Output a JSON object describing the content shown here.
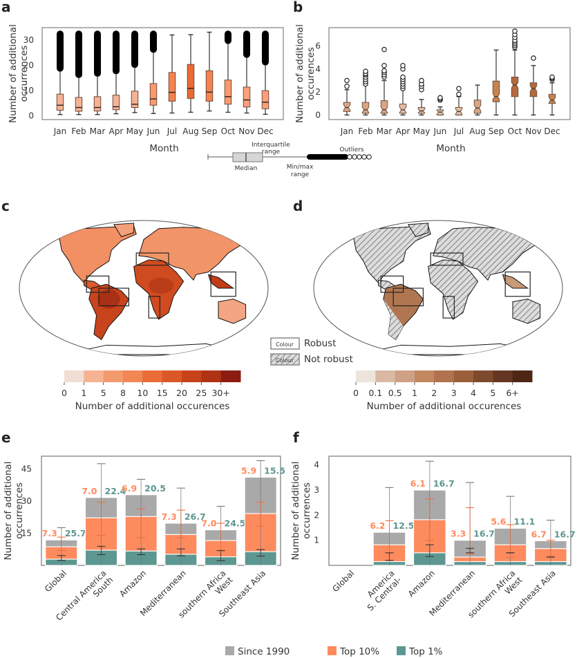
{
  "panels": {
    "a": "a",
    "b": "b",
    "c": "c",
    "d": "d",
    "e": "e",
    "f": "f"
  },
  "colors": {
    "since1990": "#a9a9a9",
    "top10": "#fe8b5e",
    "top1": "#5d9791",
    "outline": "#6b6b6b"
  },
  "chart_data": [
    {
      "id": "a",
      "type": "box",
      "title": "",
      "xlabel": "Month",
      "ylabel": "Number of additional occurrences",
      "ylim": [
        -1.5,
        35
      ],
      "yticks": [
        0,
        10,
        20,
        30
      ],
      "categories": [
        "Jan",
        "Feb",
        "Mar",
        "Apr",
        "May",
        "Jun",
        "Jul",
        "Aug",
        "Sep",
        "Oct",
        "Nov",
        "Dec"
      ],
      "boxes": [
        {
          "min": 0.5,
          "q1": 2.2,
          "median": 4.2,
          "q3": 8.6,
          "whisker_high": 17.5,
          "outliers_to": 33,
          "color": "#f6b294"
        },
        {
          "min": 0.5,
          "q1": 1.8,
          "median": 3.3,
          "q3": 7.3,
          "whisker_high": 15,
          "outliers_to": 33,
          "color": "#f6b294"
        },
        {
          "min": 0.5,
          "q1": 1.9,
          "median": 3.3,
          "q3": 7.6,
          "whisker_high": 15.5,
          "outliers_to": 33,
          "color": "#f6b294"
        },
        {
          "min": 0.8,
          "q1": 2.4,
          "median": 3.6,
          "q3": 8.2,
          "whisker_high": 16.5,
          "outliers_to": 33,
          "color": "#f6b294"
        },
        {
          "min": 1.3,
          "q1": 3.3,
          "median": 4.6,
          "q3": 9.8,
          "whisker_high": 19,
          "outliers_to": 33,
          "color": "#f6b294"
        },
        {
          "min": 0.9,
          "q1": 4.2,
          "median": 6.7,
          "q3": 12.8,
          "whisker_high": 25,
          "outliers_to": 33,
          "color": "#f99a6d"
        },
        {
          "min": 1.1,
          "q1": 5.8,
          "median": 9.3,
          "q3": 17.2,
          "whisker_high": 32.1,
          "outliers_to": null,
          "color": "#f6824e"
        },
        {
          "min": 1.4,
          "q1": 6.9,
          "median": 10.9,
          "q3": 20.4,
          "whisker_high": 32.2,
          "outliers_to": null,
          "color": "#ea6a33"
        },
        {
          "min": 1.9,
          "q1": 5.8,
          "median": 9.4,
          "q3": 17.9,
          "whisker_high": 33.2,
          "outliers_to": null,
          "color": "#f6824e"
        },
        {
          "min": 1.4,
          "q1": 4.6,
          "median": 7.6,
          "q3": 14.2,
          "whisker_high": 28.5,
          "outliers_to": 33,
          "color": "#f99a6d"
        },
        {
          "min": 1.1,
          "q1": 3.5,
          "median": 6.3,
          "q3": 11.4,
          "whisker_high": 23,
          "outliers_to": 33,
          "color": "#fba07a"
        },
        {
          "min": 0.6,
          "q1": 2.8,
          "median": 5.4,
          "q3": 10.0,
          "whisker_high": 20,
          "outliers_to": 33,
          "color": "#fba07a"
        }
      ]
    },
    {
      "id": "b",
      "type": "box",
      "notched": true,
      "title": "",
      "xlabel": "Month",
      "ylabel": "Number of additional occurences",
      "ylim": [
        -0.4,
        7.6
      ],
      "yticks": [
        0,
        2,
        4,
        6
      ],
      "categories": [
        "Jan",
        "Feb",
        "Mar",
        "Apr",
        "May",
        "Jun",
        "Jul",
        "Aug",
        "Sep",
        "Oct",
        "Nov",
        "Dec"
      ],
      "boxes": [
        {
          "min": 0,
          "q1": 0.3,
          "median": 0.65,
          "q3": 1.1,
          "whisker_high": 2.2,
          "outliers": [
            2.5,
            3.0
          ],
          "color": "#d9a583"
        },
        {
          "min": 0,
          "q1": 0.15,
          "median": 0.45,
          "q3": 1.1,
          "whisker_high": 2.6,
          "outliers": [
            2.7,
            2.9,
            3.1,
            3.3,
            3.5,
            3.6,
            3.8
          ],
          "color": "#d9a583"
        },
        {
          "min": 0,
          "q1": 0.15,
          "median": 0.45,
          "q3": 1.25,
          "whisker_high": 3.0,
          "outliers": [
            3.3,
            3.5,
            3.7,
            3.85,
            4.3,
            5.7
          ],
          "color": "#d9a583"
        },
        {
          "min": 0,
          "q1": 0.15,
          "median": 0.45,
          "q3": 0.95,
          "whisker_high": 2.2,
          "outliers": [
            2.3,
            2.5,
            2.7,
            2.9,
            3.1,
            3.3,
            4.0,
            4.3
          ],
          "color": "#e3bda0"
        },
        {
          "min": 0,
          "q1": 0.15,
          "median": 0.35,
          "q3": 0.65,
          "whisker_high": 1.35,
          "outliers": [
            2.2,
            2.5,
            2.7,
            3.0
          ],
          "color": "#e3bda0"
        },
        {
          "min": 0,
          "q1": 0.0,
          "median": 0.25,
          "q3": 0.45,
          "whisker_high": 0.7,
          "outliers": [
            1.3,
            1.4,
            1.5
          ],
          "color": "#e3bda0"
        },
        {
          "min": 0,
          "q1": 0.0,
          "median": 0.3,
          "q3": 0.65,
          "whisker_high": 1.6,
          "outliers": [
            1.8,
            2.3
          ],
          "color": "#e3bda0"
        },
        {
          "min": 0,
          "q1": 0.15,
          "median": 0.6,
          "q3": 1.3,
          "whisker_high": 2.6,
          "outliers": [],
          "color": "#d9a583"
        },
        {
          "min": 0,
          "q1": 1.15,
          "median": 1.6,
          "q3": 2.95,
          "whisker_high": 5.65,
          "outliers": [],
          "color": "#c7834e"
        },
        {
          "min": 0,
          "q1": 1.6,
          "median": 2.6,
          "q3": 3.3,
          "whisker_high": 5.65,
          "outliers": [
            5.9,
            6.05,
            6.2,
            6.35,
            6.5,
            6.75,
            7.0,
            7.3
          ],
          "color": "#b36a3c"
        },
        {
          "min": 0,
          "q1": 1.6,
          "median": 2.3,
          "q3": 2.8,
          "whisker_high": 4.3,
          "outliers": [
            4.95
          ],
          "color": "#b36a3c"
        },
        {
          "min": 0,
          "q1": 1.0,
          "median": 1.3,
          "q3": 1.8,
          "whisker_high": 2.8,
          "outliers": [
            3.1,
            3.2,
            3.3
          ],
          "color": "#c7834e"
        }
      ]
    },
    {
      "id": "e",
      "type": "bar",
      "stacked": true,
      "xlabel": "Region",
      "ylabel": "Number of additional occurrences",
      "ylim": [
        0,
        51
      ],
      "yticks": [
        15,
        30,
        45
      ],
      "categories": [
        "Global",
        "South\nCentral America",
        "Amazon",
        "Mediterranean",
        "West\nsouthern Africa",
        "Southeast Asia"
      ],
      "series": [
        {
          "name": "Since 1990",
          "values": [
            11.9,
            31.7,
            33.0,
            19.7,
            16.6,
            41.2
          ],
          "err": [
            [
              null,
              17.6
            ],
            [
              null,
              47.5
            ],
            [
              null,
              40.2
            ],
            [
              null,
              36.1
            ],
            [
              null,
              27.6
            ],
            [
              null,
              48.9
            ]
          ]
        },
        {
          "name": "Top 10%",
          "values": [
            8.7,
            22.2,
            22.8,
            14.4,
            11.6,
            24.2
          ],
          "err": [
            [
              7.0,
              13.2
            ],
            [
              14.0,
              29.5
            ],
            [
              13.0,
              26.4
            ],
            [
              13.0,
              25.8
            ],
            [
              7.0,
              19.7
            ],
            [
              18.3,
              29.5
            ]
          ]
        },
        {
          "name": "Top 1%",
          "values": [
            2.9,
            7.1,
            6.7,
            5.2,
            4.0,
            6.4
          ],
          "err": [
            [
              2.3,
              4.6
            ],
            [
              5.0,
              8.9
            ],
            [
              5.0,
              7.7
            ],
            [
              4.5,
              7.7
            ],
            [
              2.2,
              6.9
            ],
            [
              4.3,
              7.4
            ]
          ]
        }
      ],
      "annotations": {
        "top10_pct": [
          "7.3",
          "7.0",
          "6.9",
          "7.3",
          "7.0",
          "5.9"
        ],
        "top1_pct": [
          "25.7",
          "22.4",
          "20.5",
          "26.7",
          "24.5",
          "15.5"
        ]
      }
    },
    {
      "id": "f",
      "type": "bar",
      "stacked": true,
      "xlabel": "Region",
      "ylabel": "Number of additional occurrences",
      "ylim": [
        0,
        4.35
      ],
      "yticks": [
        1,
        2,
        3,
        4
      ],
      "categories": [
        "Global",
        "S. Central-\nAmerica",
        "Amazon",
        "Mediterranean",
        "West\nsouthern Africa",
        "Southeast Asia"
      ],
      "series": [
        {
          "name": "Since 1990",
          "values": [
            0,
            1.32,
            3.0,
            1.0,
            1.48,
            0.98
          ],
          "err": [
            [
              null,
              null
            ],
            [
              null,
              3.1
            ],
            [
              null,
              4.15
            ],
            [
              null,
              3.3
            ],
            [
              null,
              2.75
            ],
            [
              null,
              1.8
            ]
          ]
        },
        {
          "name": "Top 10%",
          "values": [
            0,
            0.82,
            1.82,
            0.33,
            0.82,
            0.67
          ],
          "err": [
            [
              null,
              null
            ],
            [
              0.5,
              1.78
            ],
            [
              1.0,
              2.65
            ],
            [
              0.45,
              2.3
            ],
            [
              0.32,
              1.62
            ],
            [
              0.35,
              1.0
            ]
          ]
        },
        {
          "name": "Top 1%",
          "values": [
            0,
            0.15,
            0.5,
            0.15,
            0.15,
            0.15
          ],
          "err": [
            [
              null,
              null
            ],
            [
              0.2,
              0.5
            ],
            [
              0.35,
              0.82
            ],
            [
              0.5,
              0.68
            ],
            [
              0.5,
              0.5
            ],
            [
              0.33,
              0.33
            ]
          ]
        }
      ],
      "annotations": {
        "top10_pct": [
          "",
          "6.2",
          "6.1",
          "3.3",
          "5.6",
          "6.7"
        ],
        "top1_pct": [
          "",
          "12.5",
          "16.7",
          "16.7",
          "11.1",
          "16.7"
        ]
      }
    },
    {
      "id": "c",
      "type": "heatmap",
      "subtype": "world-map",
      "colorbar_label": "Number of additional occurences",
      "colorbar_ticks": [
        "0",
        "1",
        "5",
        "8",
        "10",
        "15",
        "20",
        "25",
        "30+"
      ],
      "colorbar_colors": [
        "#f1ddd3",
        "#f6b393",
        "#f39a6d",
        "#f28654",
        "#ea6c36",
        "#dc5727",
        "#c8421a",
        "#b03215",
        "#8c1c11"
      ],
      "highlight_regions": [
        "South Central America",
        "Amazon",
        "Mediterranean",
        "West southern Africa",
        "Southeast Asia"
      ]
    },
    {
      "id": "d",
      "type": "heatmap",
      "subtype": "world-map",
      "colorbar_label": "Number of additional occurences",
      "colorbar_ticks": [
        "0",
        "0.1",
        "0.5",
        "1",
        "2",
        "3",
        "4",
        "5",
        "6+"
      ],
      "colorbar_colors": [
        "#ede4dc",
        "#d9b9a2",
        "#cea085",
        "#c38860",
        "#b17250",
        "#9c5f3c",
        "#7e4a2e",
        "#653621",
        "#4e2614"
      ],
      "highlight_regions": [
        "South Central America",
        "Amazon",
        "Mediterranean",
        "West southern Africa",
        "Southeast Asia"
      ]
    }
  ],
  "box_legend": {
    "median": "Median",
    "iqr_line1": "Interquartile",
    "iqr_line2": "range",
    "minmax_line1": "Min/max",
    "minmax_line2": "range",
    "outliers": "Outliers"
  },
  "robust_legend": {
    "swatch_text": "Colour",
    "robust": "Robust",
    "not_robust": "Not robust"
  },
  "bar_legend": [
    "Since 1990",
    "Top 10%",
    "Top 1%"
  ]
}
